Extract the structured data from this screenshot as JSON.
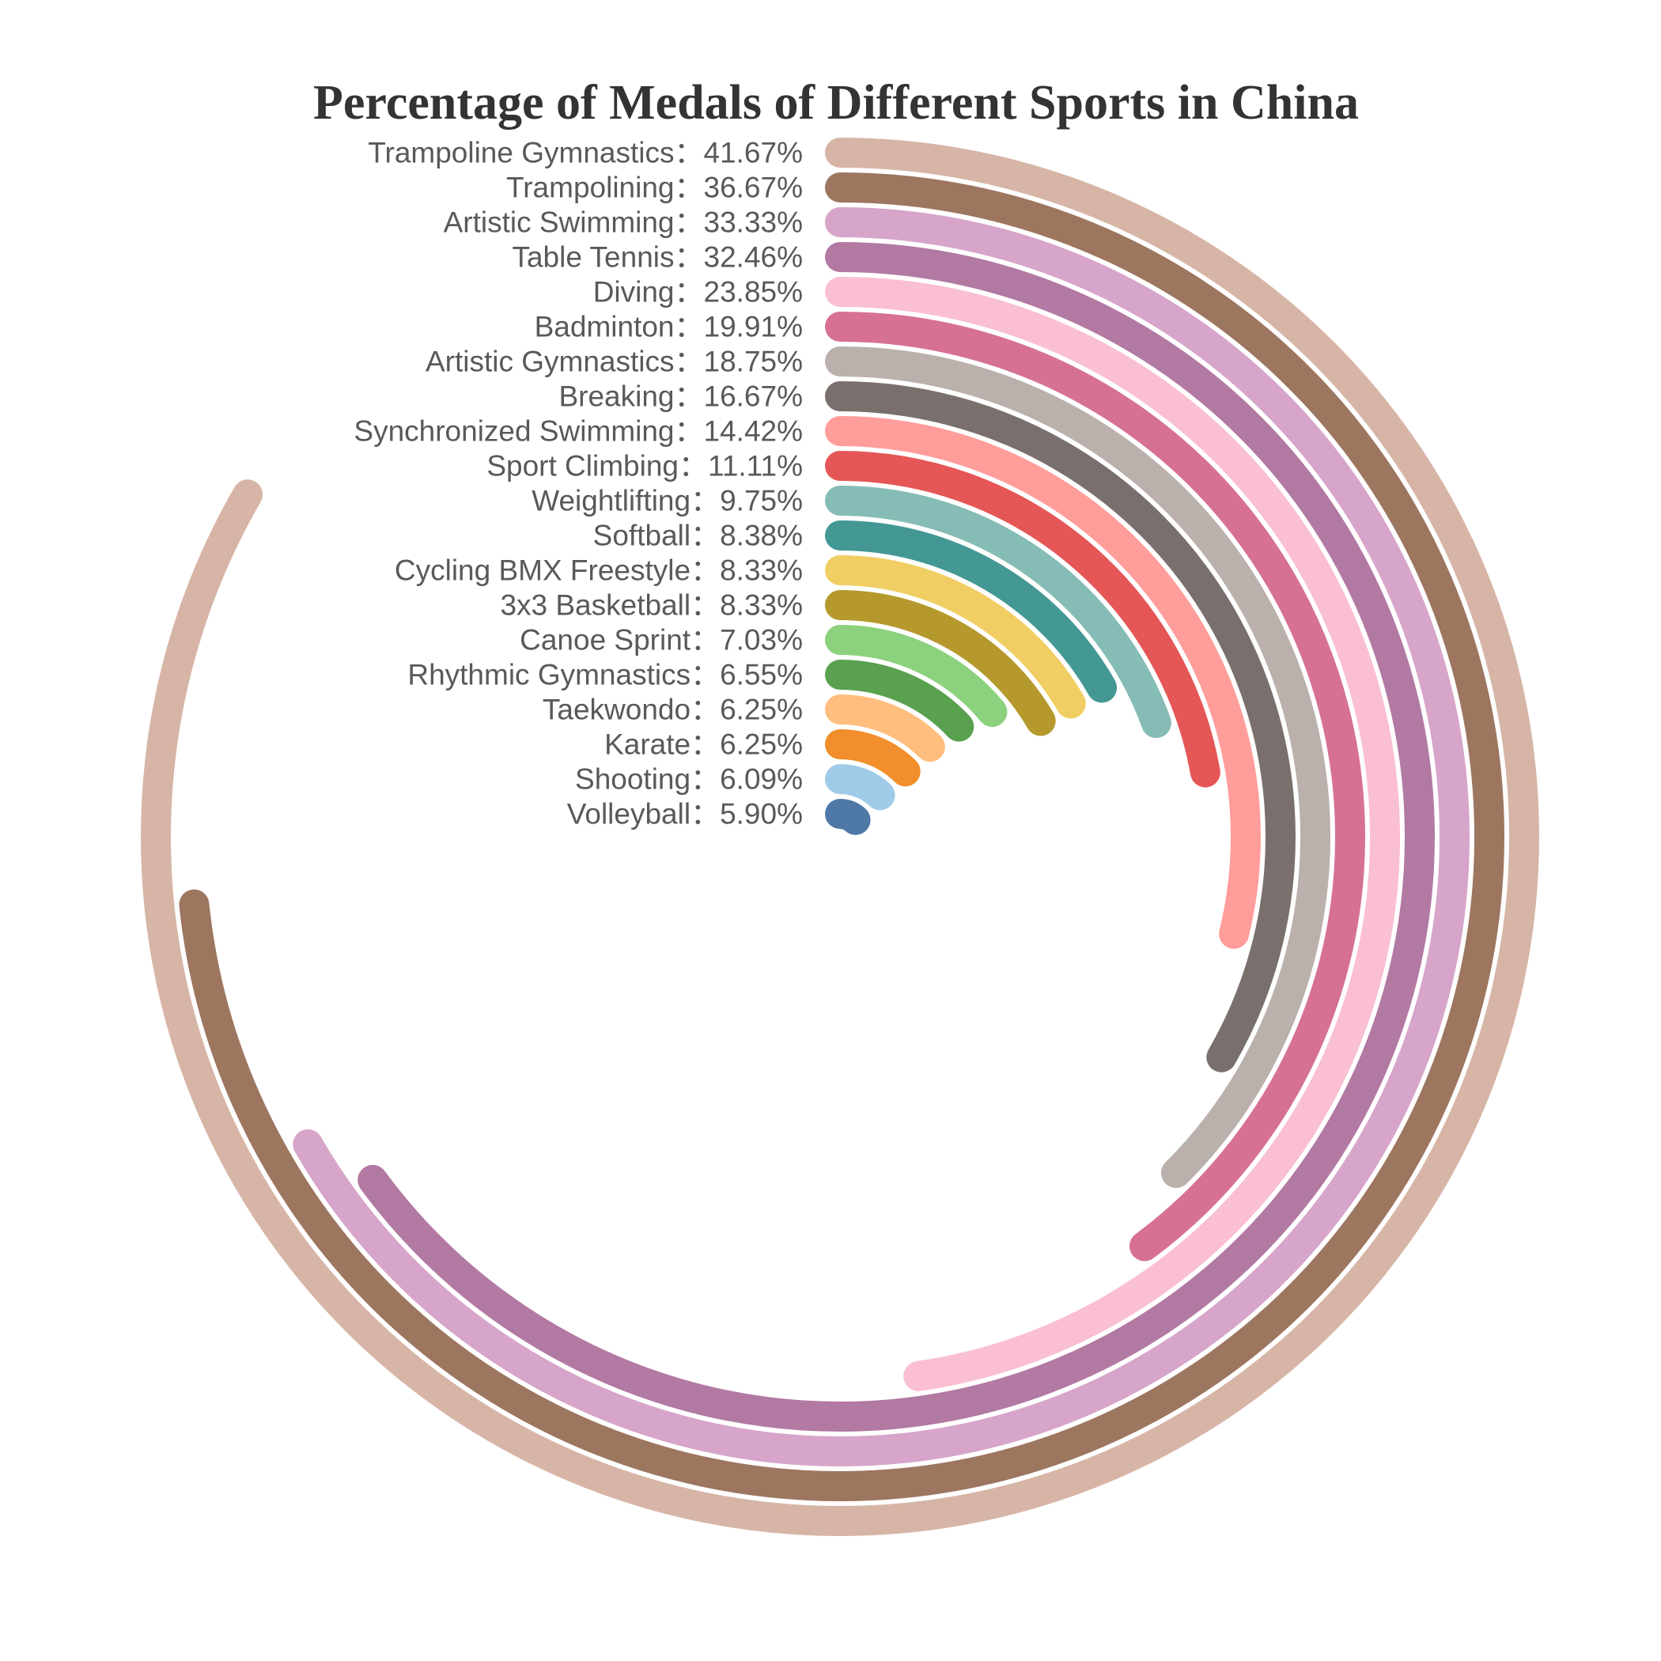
{
  "chart_data": {
    "type": "radial-bar",
    "title": "Percentage of Medals of Different Sports in China",
    "unit": "%",
    "separator": "：",
    "max_value": 50,
    "series": [
      {
        "name": "Trampoline Gymnastics",
        "value": 41.67,
        "label": "41.67%",
        "color": "#d7b5a6"
      },
      {
        "name": "Trampolining",
        "value": 36.67,
        "label": "36.67%",
        "color": "#9d7660"
      },
      {
        "name": "Artistic Swimming",
        "value": 33.33,
        "label": "33.33%",
        "color": "#d7a5c9"
      },
      {
        "name": "Table Tennis",
        "value": 32.46,
        "label": "32.46%",
        "color": "#b279a2"
      },
      {
        "name": "Diving",
        "value": 23.85,
        "label": "23.85%",
        "color": "#fabfd2"
      },
      {
        "name": "Badminton",
        "value": 19.91,
        "label": "19.91%",
        "color": "#d67195"
      },
      {
        "name": "Artistic Gymnastics",
        "value": 18.75,
        "label": "18.75%",
        "color": "#bab0ac"
      },
      {
        "name": "Breaking",
        "value": 16.67,
        "label": "16.67%",
        "color": "#79706e"
      },
      {
        "name": "Synchronized Swimming",
        "value": 14.42,
        "label": "14.42%",
        "color": "#ff9d9a"
      },
      {
        "name": "Sport Climbing",
        "value": 11.11,
        "label": "11.11%",
        "color": "#e45756"
      },
      {
        "name": "Weightlifting",
        "value": 9.75,
        "label": "9.75%",
        "color": "#86bcb6"
      },
      {
        "name": "Softball",
        "value": 8.38,
        "label": "8.38%",
        "color": "#439894"
      },
      {
        "name": "Cycling BMX Freestyle",
        "value": 8.33,
        "label": "8.33%",
        "color": "#f1ce63"
      },
      {
        "name": "3x3 Basketball",
        "value": 8.33,
        "label": "8.33%",
        "color": "#b6992d"
      },
      {
        "name": "Canoe Sprint",
        "value": 7.03,
        "label": "7.03%",
        "color": "#8cd17d"
      },
      {
        "name": "Rhythmic Gymnastics",
        "value": 6.55,
        "label": "6.55%",
        "color": "#59a14f"
      },
      {
        "name": "Taekwondo",
        "value": 6.25,
        "label": "6.25%",
        "color": "#ffbe7d"
      },
      {
        "name": "Karate",
        "value": 6.25,
        "label": "6.25%",
        "color": "#f28e2b"
      },
      {
        "name": "Shooting",
        "value": 6.09,
        "label": "6.09%",
        "color": "#a0cbe8"
      },
      {
        "name": "Volleyball",
        "value": 5.9,
        "label": "5.90%",
        "color": "#4e79a7"
      }
    ]
  }
}
